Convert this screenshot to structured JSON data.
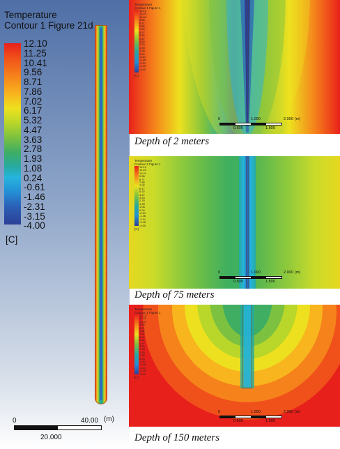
{
  "main": {
    "legend_title_line1": "Temperature",
    "legend_title_line2": "Contour 1 Figure 21d",
    "legend_values": [
      "12.10",
      "11.25",
      "10.41",
      "9.56",
      "8.71",
      "7.86",
      "7.02",
      "6.17",
      "5.32",
      "4.47",
      "3.63",
      "2.78",
      "1.93",
      "1.08",
      "0.24",
      "-0.61",
      "-1.46",
      "-2.31",
      "-3.15",
      "-4.00"
    ],
    "unit": "[C]",
    "scale_start": "0",
    "scale_end": "40.00",
    "scale_unit": "(m)",
    "scale_mid": "20.000"
  },
  "mini_legend": {
    "title_line1": "Temperature",
    "title_line2": "Contour 1 Figure 1",
    "values": [
      "12.10",
      "11.25",
      "10.41",
      "9.56",
      "8.71",
      "7.86",
      "7.02",
      "6.17",
      "5.32",
      "4.47",
      "3.63",
      "2.78",
      "1.93",
      "1.08",
      "0.24",
      "-0.61",
      "-1.46",
      "-2.31",
      "-3.15",
      "-4.00"
    ],
    "unit": "[C]"
  },
  "mini_scale": {
    "start": "0",
    "mid_top": "1.000",
    "end": "2.000",
    "unit": "(m)",
    "bottom_left": "0.500",
    "bottom_right": "1.500"
  },
  "captions": {
    "depth_2": "Depth of 2 meters",
    "depth_75": "Depth of 75 meters",
    "depth_150": "Depth of 150 meters"
  }
}
